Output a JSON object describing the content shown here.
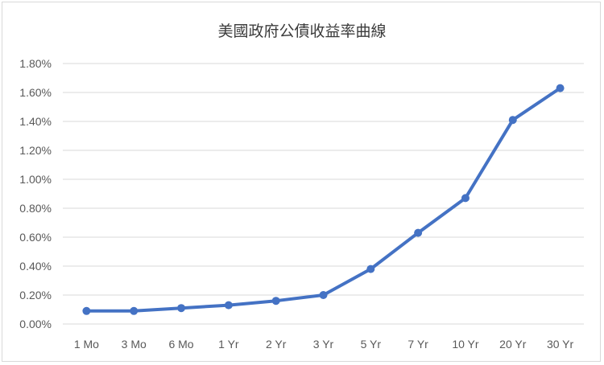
{
  "chart_data": {
    "type": "line",
    "title": "美國政府公債收益率曲線",
    "xlabel": "",
    "ylabel": "",
    "categories": [
      "1 Mo",
      "3 Mo",
      "6 Mo",
      "1 Yr",
      "2 Yr",
      "3 Yr",
      "5 Yr",
      "7 Yr",
      "10 Yr",
      "20 Yr",
      "30 Yr"
    ],
    "series": [
      {
        "values": [
          0.09,
          0.09,
          0.11,
          0.13,
          0.16,
          0.2,
          0.38,
          0.63,
          0.87,
          1.41,
          1.63
        ]
      }
    ],
    "ylim": [
      0,
      1.8
    ],
    "yticks": [
      "0.00%",
      "0.20%",
      "0.40%",
      "0.60%",
      "0.80%",
      "1.00%",
      "1.20%",
      "1.40%",
      "1.60%",
      "1.80%"
    ],
    "grid": true,
    "line_color": "#4472c4",
    "legend": "none"
  }
}
